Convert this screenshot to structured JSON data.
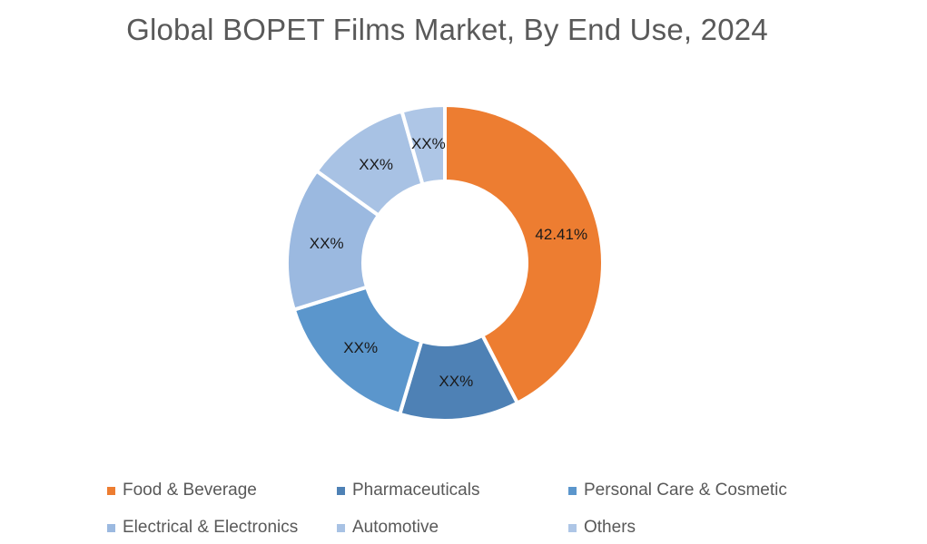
{
  "chart_data": {
    "type": "pie",
    "variant": "donut",
    "title": "Global BOPET Films Market, By End Use, 2024",
    "categories": [
      "Food & Beverage",
      "Pharmaceuticals",
      "Personal Care & Cosmetic",
      "Electrical & Electronics",
      "Automotive",
      "Others"
    ],
    "values": [
      42.41,
      12.2,
      15.6,
      14.7,
      10.7,
      4.39
    ],
    "labels": [
      "42.41%",
      "XX%",
      "XX%",
      "XX%",
      "XX%",
      "XX%"
    ],
    "colors": [
      "#ED7D31",
      "#4E81B5",
      "#5B96CC",
      "#9BB9E0",
      "#A8C2E4",
      "#AEC6E6"
    ],
    "legend_position": "bottom",
    "start_angle_deg": 0,
    "direction": "clockwise"
  },
  "legend": [
    {
      "label": "Food & Beverage",
      "color": "#ED7D31"
    },
    {
      "label": "Pharmaceuticals",
      "color": "#4E81B5"
    },
    {
      "label": "Personal Care & Cosmetic",
      "color": "#5B96CC"
    },
    {
      "label": "Electrical & Electronics",
      "color": "#9BB9E0"
    },
    {
      "label": "Automotive",
      "color": "#A8C2E4"
    },
    {
      "label": "Others",
      "color": "#AEC6E6"
    }
  ]
}
